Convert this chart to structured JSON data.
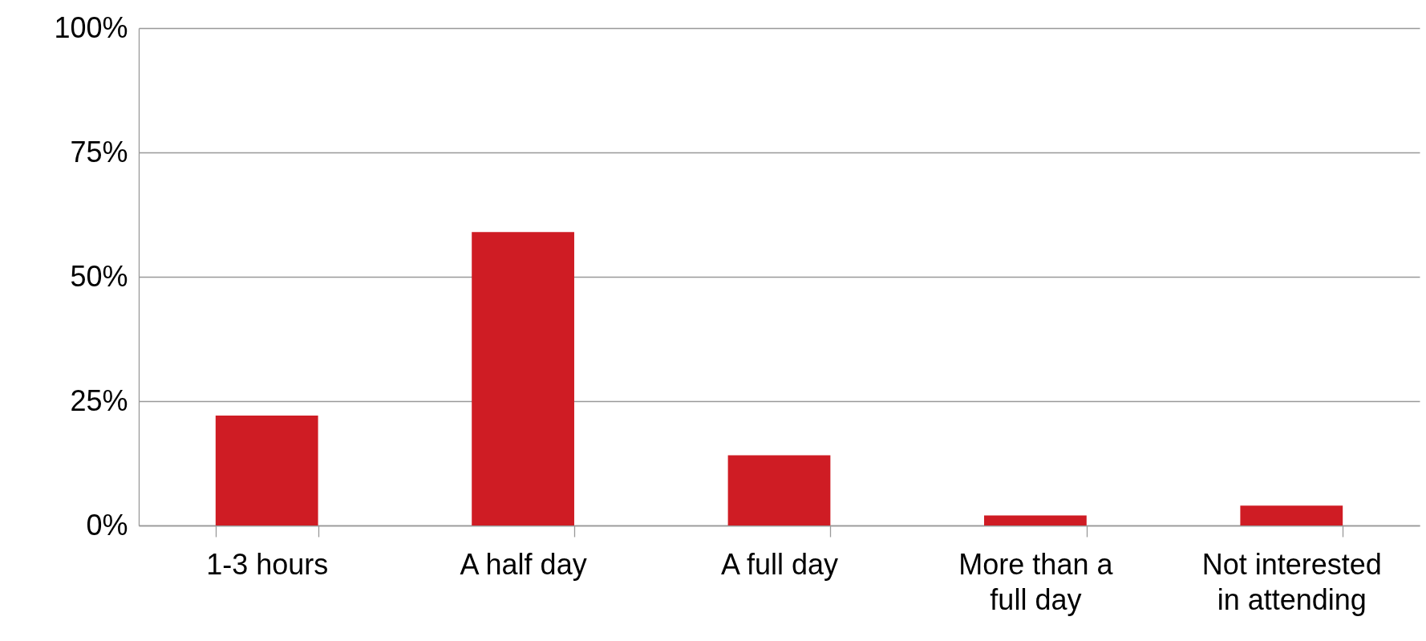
{
  "chart_data": {
    "type": "bar",
    "categories": [
      "1-3 hours",
      "A half day",
      "A full day",
      "More than a full day",
      "Not interested in attending"
    ],
    "values": [
      22.1,
      59,
      14.1,
      2,
      4
    ],
    "color": "#cf1c24",
    "ylim": [
      0,
      100
    ],
    "yticks": [
      {
        "value": 0,
        "label": "0%"
      },
      {
        "value": 25,
        "label": "25%"
      },
      {
        "value": 50,
        "label": "50%"
      },
      {
        "value": 75,
        "label": "75%"
      },
      {
        "value": 100,
        "label": "100%"
      }
    ],
    "grid": "y"
  }
}
